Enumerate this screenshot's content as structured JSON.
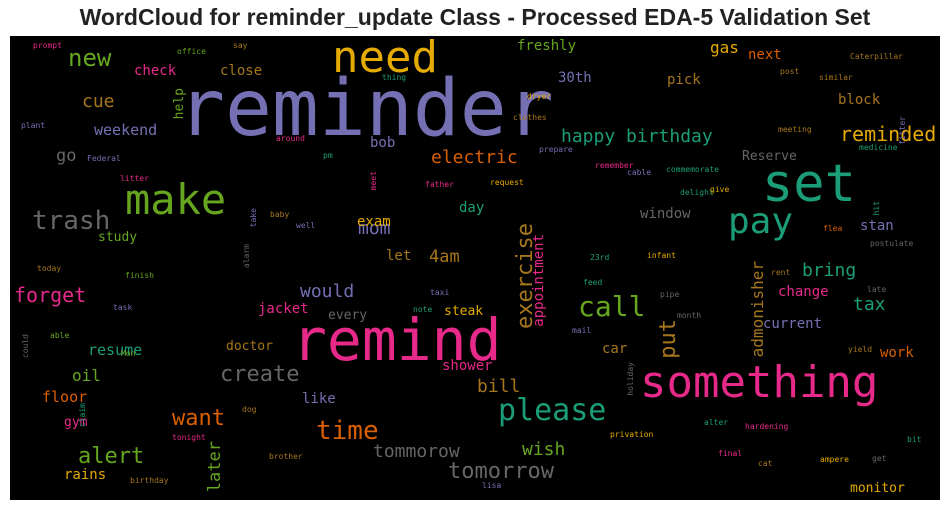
{
  "chart_data": {
    "type": "wordcloud",
    "title": "WordCloud for reminder_update Class - Processed EDA-5 Validation Set",
    "background": "#000000",
    "palette": [
      "#7570b3",
      "#e7298a",
      "#1b9e77",
      "#d95f02",
      "#66a61e",
      "#e6ab02",
      "#a6761d",
      "#666666"
    ],
    "words": [
      {
        "text": "reminder",
        "color": "#7570b3",
        "rank": 1
      },
      {
        "text": "remind",
        "color": "#e7298a",
        "rank": 2
      },
      {
        "text": "something",
        "color": "#e7298a",
        "rank": 3
      },
      {
        "text": "set",
        "color": "#1b9e77",
        "rank": 4
      },
      {
        "text": "make",
        "color": "#66a61e",
        "rank": 5
      },
      {
        "text": "need",
        "color": "#e6ab02",
        "rank": 6
      },
      {
        "text": "pay",
        "color": "#1b9e77",
        "rank": 7
      },
      {
        "text": "please",
        "color": "#1b9e77",
        "rank": 8
      },
      {
        "text": "call",
        "color": "#66a61e",
        "rank": 9
      },
      {
        "text": "trash",
        "color": "#666666",
        "rank": 10
      },
      {
        "text": "time",
        "color": "#d95f02",
        "rank": 11
      },
      {
        "text": "create",
        "color": "#666666",
        "rank": 12
      },
      {
        "text": "tomorrow",
        "color": "#666666",
        "rank": 13
      },
      {
        "text": "want",
        "color": "#d95f02",
        "rank": 14
      },
      {
        "text": "new",
        "color": "#66a61e",
        "rank": 15
      },
      {
        "text": "exercise",
        "color": "#a6761d",
        "rank": 16
      },
      {
        "text": "put",
        "color": "#a6761d",
        "rank": 17
      },
      {
        "text": "reminded",
        "color": "#e6ab02",
        "rank": 18
      },
      {
        "text": "alert",
        "color": "#66a61e",
        "rank": 19
      },
      {
        "text": "forget",
        "color": "#e7298a",
        "rank": 20
      },
      {
        "text": "happy birthday",
        "color": "#1b9e77",
        "rank": 21
      },
      {
        "text": "electric",
        "color": "#d95f02",
        "rank": 22
      },
      {
        "text": "mom",
        "color": "#7570b3",
        "rank": 23
      },
      {
        "text": "would",
        "color": "#7570b3",
        "rank": 24
      },
      {
        "text": "bring",
        "color": "#1b9e77",
        "rank": 25
      },
      {
        "text": "tax",
        "color": "#1b9e77",
        "rank": 26
      },
      {
        "text": "tommorow",
        "color": "#666666",
        "rank": 27
      },
      {
        "text": "wish",
        "color": "#66a61e",
        "rank": 28
      },
      {
        "text": "bill",
        "color": "#a6761d",
        "rank": 29
      },
      {
        "text": "later",
        "color": "#66a61e",
        "rank": 30
      },
      {
        "text": "admonisher",
        "color": "#a6761d",
        "rank": 31
      },
      {
        "text": "appointment",
        "color": "#e7298a",
        "rank": 32
      },
      {
        "text": "4am",
        "color": "#a6761d",
        "rank": 33
      },
      {
        "text": "cue",
        "color": "#a6761d",
        "rank": 34
      },
      {
        "text": "go",
        "color": "#666666",
        "rank": 35
      },
      {
        "text": "weekend",
        "color": "#7570b3",
        "rank": 36
      },
      {
        "text": "check",
        "color": "#e7298a",
        "rank": 37
      },
      {
        "text": "close",
        "color": "#a6761d",
        "rank": 38
      },
      {
        "text": "freshly",
        "color": "#66a61e",
        "rank": 39
      },
      {
        "text": "pick",
        "color": "#a6761d",
        "rank": 40
      },
      {
        "text": "gas",
        "color": "#e6ab02",
        "rank": 41
      },
      {
        "text": "next",
        "color": "#d95f02",
        "rank": 42
      },
      {
        "text": "30th",
        "color": "#7570b3",
        "rank": 43
      },
      {
        "text": "block",
        "color": "#a6761d",
        "rank": 44
      },
      {
        "text": "help",
        "color": "#66a61e",
        "rank": 45
      },
      {
        "text": "bob",
        "color": "#7570b3",
        "rank": 46
      },
      {
        "text": "exam",
        "color": "#e6ab02",
        "rank": 47
      },
      {
        "text": "day",
        "color": "#1b9e77",
        "rank": 48
      },
      {
        "text": "window",
        "color": "#666666",
        "rank": 49
      },
      {
        "text": "stan",
        "color": "#7570b3",
        "rank": 50
      },
      {
        "text": "Reserve",
        "color": "#666666",
        "rank": 51
      },
      {
        "text": "study",
        "color": "#66a61e",
        "rank": 52
      },
      {
        "text": "let",
        "color": "#a6761d",
        "rank": 53
      },
      {
        "text": "shower",
        "color": "#e7298a",
        "rank": 54
      },
      {
        "text": "steak",
        "color": "#e6ab02",
        "rank": 55
      },
      {
        "text": "jacket",
        "color": "#e7298a",
        "rank": 56
      },
      {
        "text": "every",
        "color": "#666666",
        "rank": 57
      },
      {
        "text": "change",
        "color": "#e7298a",
        "rank": 58
      },
      {
        "text": "current",
        "color": "#7570b3",
        "rank": 59
      },
      {
        "text": "resume",
        "color": "#1b9e77",
        "rank": 60
      },
      {
        "text": "oil",
        "color": "#66a61e",
        "rank": 61
      },
      {
        "text": "floor",
        "color": "#d95f02",
        "rank": 62
      },
      {
        "text": "gym",
        "color": "#e7298a",
        "rank": 63
      },
      {
        "text": "rains",
        "color": "#e6ab02",
        "rank": 64
      },
      {
        "text": "like",
        "color": "#7570b3",
        "rank": 65
      },
      {
        "text": "doctor",
        "color": "#a6761d",
        "rank": 66
      },
      {
        "text": "car",
        "color": "#a6761d",
        "rank": 67
      },
      {
        "text": "work",
        "color": "#d95f02",
        "rank": 68
      },
      {
        "text": "monitor",
        "color": "#e6ab02",
        "rank": 69
      },
      {
        "text": "prompt",
        "color": "#e7298a",
        "rank": 70
      },
      {
        "text": "office",
        "color": "#66a61e",
        "rank": 71
      },
      {
        "text": "say",
        "color": "#a6761d",
        "rank": 72
      },
      {
        "text": "thing",
        "color": "#1b9e77",
        "rank": 73
      },
      {
        "text": "Caterpillar",
        "color": "#a6761d",
        "rank": 74
      },
      {
        "text": "post",
        "color": "#a6761d",
        "rank": 75
      },
      {
        "text": "similar",
        "color": "#a6761d",
        "rank": 76
      },
      {
        "text": "fitter",
        "color": "#7570b3",
        "rank": 77
      },
      {
        "text": "dryer",
        "color": "#e6ab02",
        "rank": 78
      },
      {
        "text": "clothes",
        "color": "#a6761d",
        "rank": 79
      },
      {
        "text": "plant",
        "color": "#7570b3",
        "rank": 80
      },
      {
        "text": "around",
        "color": "#e7298a",
        "rank": 81
      },
      {
        "text": "meeting",
        "color": "#a6761d",
        "rank": 82
      },
      {
        "text": "medicine",
        "color": "#1b9e77",
        "rank": 83
      },
      {
        "text": "Federal",
        "color": "#7570b3",
        "rank": 84
      },
      {
        "text": "pm",
        "color": "#1b9e77",
        "rank": 85
      },
      {
        "text": "prepare",
        "color": "#7570b3",
        "rank": 86
      },
      {
        "text": "remember",
        "color": "#e7298a",
        "rank": 87
      },
      {
        "text": "cable",
        "color": "#7570b3",
        "rank": 88
      },
      {
        "text": "commemorate",
        "color": "#1b9e77",
        "rank": 89
      },
      {
        "text": "litter",
        "color": "#e7298a",
        "rank": 90
      },
      {
        "text": "father",
        "color": "#e7298a",
        "rank": 91
      },
      {
        "text": "request",
        "color": "#e6ab02",
        "rank": 92
      },
      {
        "text": "delight",
        "color": "#1b9e77",
        "rank": 93
      },
      {
        "text": "give",
        "color": "#e6ab02",
        "rank": 94
      },
      {
        "text": "meet",
        "color": "#e7298a",
        "rank": 95
      },
      {
        "text": "take",
        "color": "#7570b3",
        "rank": 96
      },
      {
        "text": "baby",
        "color": "#a6761d",
        "rank": 97
      },
      {
        "text": "well",
        "color": "#7570b3",
        "rank": 98
      },
      {
        "text": "hit",
        "color": "#1b9e77",
        "rank": 99
      },
      {
        "text": "flea",
        "color": "#d95f02",
        "rank": 100
      },
      {
        "text": "postulate",
        "color": "#666666",
        "rank": 101
      },
      {
        "text": "alarm",
        "color": "#666666",
        "rank": 102
      },
      {
        "text": "today",
        "color": "#a6761d",
        "rank": 103
      },
      {
        "text": "23rd",
        "color": "#1b9e77",
        "rank": 104
      },
      {
        "text": "infant",
        "color": "#e6ab02",
        "rank": 105
      },
      {
        "text": "finish",
        "color": "#66a61e",
        "rank": 106
      },
      {
        "text": "rent",
        "color": "#a6761d",
        "rank": 107
      },
      {
        "text": "late",
        "color": "#666666",
        "rank": 108
      },
      {
        "text": "feed",
        "color": "#1b9e77",
        "rank": 109
      },
      {
        "text": "taxi",
        "color": "#7570b3",
        "rank": 110
      },
      {
        "text": "pipe",
        "color": "#666666",
        "rank": 111
      },
      {
        "text": "task",
        "color": "#7570b3",
        "rank": 112
      },
      {
        "text": "note",
        "color": "#1b9e77",
        "rank": 113
      },
      {
        "text": "month",
        "color": "#666666",
        "rank": 114
      },
      {
        "text": "could",
        "color": "#666666",
        "rank": 115
      },
      {
        "text": "able",
        "color": "#66a61e",
        "rank": 116
      },
      {
        "text": "mail",
        "color": "#7570b3",
        "rank": 117
      },
      {
        "text": "yield",
        "color": "#a6761d",
        "rank": 118
      },
      {
        "text": "Mon",
        "color": "#66a61e",
        "rank": 119
      },
      {
        "text": "holiday",
        "color": "#666666",
        "rank": 120
      },
      {
        "text": "dog",
        "color": "#a6761d",
        "rank": 121
      },
      {
        "text": "alter",
        "color": "#1b9e77",
        "rank": 122
      },
      {
        "text": "hardening",
        "color": "#e7298a",
        "rank": 123
      },
      {
        "text": "claim",
        "color": "#1b9e77",
        "rank": 124
      },
      {
        "text": "privation",
        "color": "#e6ab02",
        "rank": 125
      },
      {
        "text": "bit",
        "color": "#1b9e77",
        "rank": 126
      },
      {
        "text": "tonight",
        "color": "#e7298a",
        "rank": 127
      },
      {
        "text": "brother",
        "color": "#a6761d",
        "rank": 128
      },
      {
        "text": "final",
        "color": "#e7298a",
        "rank": 129
      },
      {
        "text": "ampere",
        "color": "#e6ab02",
        "rank": 130
      },
      {
        "text": "get",
        "color": "#666666",
        "rank": 131
      },
      {
        "text": "cat",
        "color": "#a6761d",
        "rank": 132
      },
      {
        "text": "birthday",
        "color": "#a6761d",
        "rank": 133
      },
      {
        "text": "lisa",
        "color": "#7570b3",
        "rank": 134
      }
    ]
  }
}
